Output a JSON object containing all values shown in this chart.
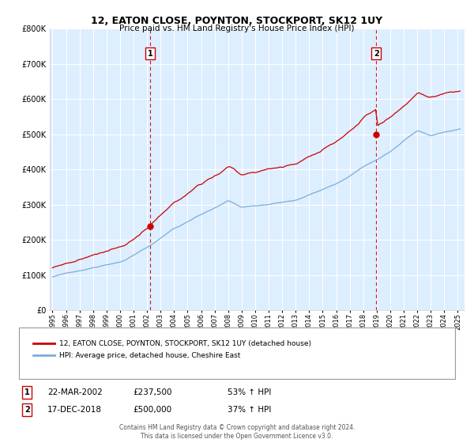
{
  "title": "12, EATON CLOSE, POYNTON, STOCKPORT, SK12 1UY",
  "subtitle": "Price paid vs. HM Land Registry's House Price Index (HPI)",
  "ylim": [
    0,
    800000
  ],
  "xlim_start": 1994.8,
  "xlim_end": 2025.5,
  "transaction1_date": 2002.22,
  "transaction1_price": 237500,
  "transaction2_date": 2018.96,
  "transaction2_price": 500000,
  "legend_line1": "12, EATON CLOSE, POYNTON, STOCKPORT, SK12 1UY (detached house)",
  "legend_line2": "HPI: Average price, detached house, Cheshire East",
  "t1_col1": "22-MAR-2002",
  "t1_col2": "£237,500",
  "t1_col3": "53% ↑ HPI",
  "t2_col1": "17-DEC-2018",
  "t2_col2": "£500,000",
  "t2_col3": "37% ↑ HPI",
  "footnote": "Contains HM Land Registry data © Crown copyright and database right 2024.\nThis data is licensed under the Open Government Licence v3.0.",
  "price_line_color": "#cc0000",
  "hpi_line_color": "#7aaddc",
  "vline_color": "#cc0000",
  "background_color": "#ffffff",
  "plot_bg_color": "#ddeeff",
  "grid_color": "#ffffff"
}
